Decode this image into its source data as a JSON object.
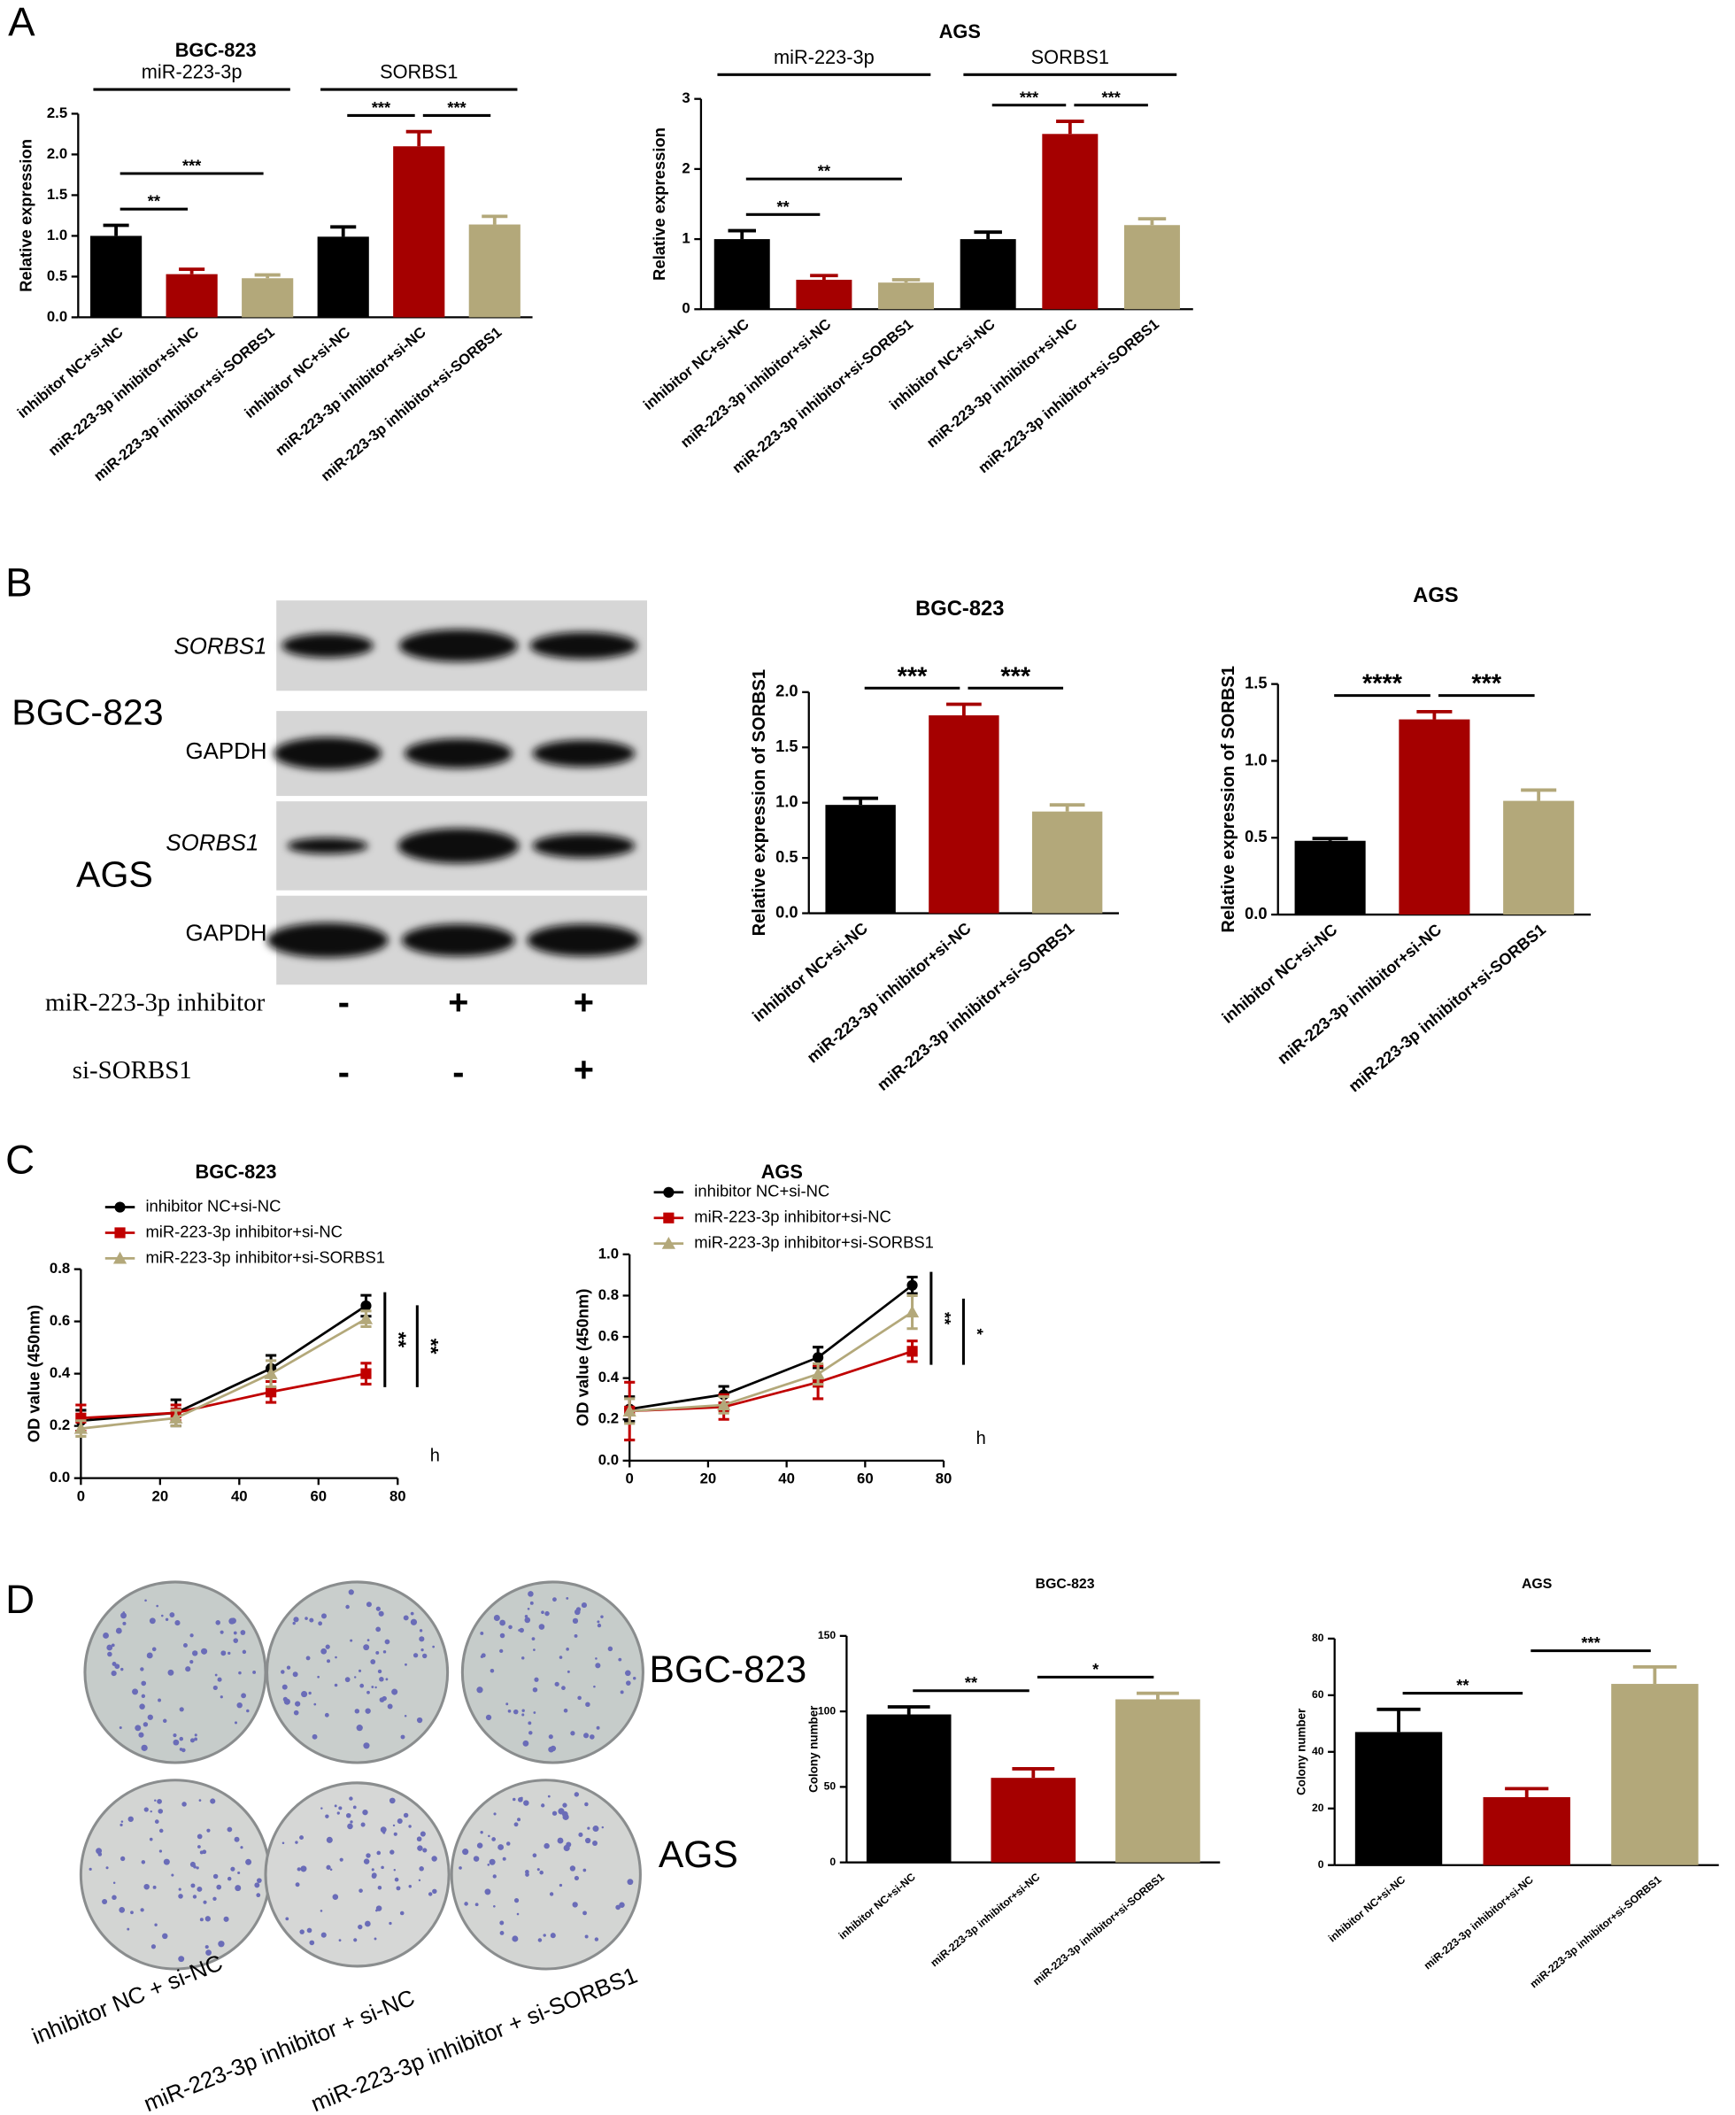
{
  "panel_labels": [
    "A",
    "B",
    "C",
    "D"
  ],
  "chart_data": [
    {
      "type": "bar",
      "title": "BGC-823",
      "y_label": "Relative expression",
      "categories": [
        "inhibitor NC+si-NC",
        "miR-223-3p inhibitor+si-NC",
        "miR-223-3p inhibitor+si-SORBS1",
        "inhibitor NC+si-NC",
        "miR-223-3p inhibitor+si-NC",
        "miR-223-3p inhibitor+si-SORBS1"
      ],
      "values": [
        1.0,
        0.53,
        0.48,
        0.99,
        2.1,
        1.14
      ],
      "errors": [
        0.13,
        0.06,
        0.04,
        0.12,
        0.18,
        0.1
      ],
      "colors": [
        "#000000",
        "#a50000",
        "#b3a87a",
        "#000000",
        "#a50000",
        "#b3a87a"
      ],
      "ylim": [
        0,
        2.5
      ],
      "yticks": [
        {
          "value": 0,
          "label": "0.0"
        },
        0.5,
        {
          "value": 1,
          "label": "1.0"
        },
        1.5,
        {
          "value": 2,
          "label": "2.0"
        },
        2.5
      ],
      "groups": [
        {
          "label": "miR-223-3p",
          "bars": [
            0,
            2
          ]
        },
        {
          "label": "SORBS1",
          "bars": [
            3,
            5
          ]
        }
      ],
      "significance": [
        {
          "label": "**",
          "bars": [
            0,
            1
          ]
        },
        {
          "label": "***",
          "bars": [
            0,
            2
          ]
        },
        {
          "label": "***",
          "bars": [
            3,
            4
          ]
        },
        {
          "label": "***",
          "bars": [
            4,
            5
          ]
        }
      ]
    },
    {
      "type": "bar",
      "title": "AGS",
      "y_label": "Relative expression",
      "categories": [
        "inhibitor NC+si-NC",
        "miR-223-3p inhibitor+si-NC",
        "miR-223-3p inhibitor+si-SORBS1",
        "inhibitor NC+si-NC",
        "miR-223-3p inhibitor+si-NC",
        "miR-223-3p inhibitor+si-SORBS1"
      ],
      "values": [
        1.0,
        0.42,
        0.38,
        1.0,
        2.5,
        1.2
      ],
      "errors": [
        0.12,
        0.06,
        0.04,
        0.1,
        0.18,
        0.09
      ],
      "colors": [
        "#000000",
        "#a50000",
        "#b3a87a",
        "#000000",
        "#a50000",
        "#b3a87a"
      ],
      "ylim": [
        0,
        3
      ],
      "yticks": [
        0,
        1,
        2,
        3
      ],
      "groups": [
        {
          "label": "miR-223-3p",
          "bars": [
            0,
            2
          ]
        },
        {
          "label": "SORBS1",
          "bars": [
            3,
            5
          ]
        }
      ],
      "significance": [
        {
          "label": "**",
          "bars": [
            0,
            1
          ]
        },
        {
          "label": "**",
          "bars": [
            0,
            2
          ]
        },
        {
          "label": "***",
          "bars": [
            3,
            4
          ]
        },
        {
          "label": "***",
          "bars": [
            4,
            5
          ]
        }
      ]
    },
    {
      "type": "bar",
      "title": "BGC-823",
      "y_label": "Relative expression of SORBS1",
      "categories": [
        "inhibitor NC+si-NC",
        "miR-223-3p inhibitor+si-NC",
        "miR-223-3p inhibitor+si-SORBS1"
      ],
      "values": [
        0.98,
        1.79,
        0.92
      ],
      "errors": [
        0.06,
        0.1,
        0.06
      ],
      "colors": [
        "#000000",
        "#a50000",
        "#b3a87a"
      ],
      "ylim": [
        0,
        2
      ],
      "yticks": [
        {
          "value": 0,
          "label": "0.0"
        },
        0.5,
        {
          "value": 1,
          "label": "1.0"
        },
        1.5,
        {
          "value": 2,
          "label": "2.0"
        }
      ],
      "significance": [
        {
          "label": "***",
          "bars": [
            0,
            1
          ]
        },
        {
          "label": "***",
          "bars": [
            1,
            2
          ]
        }
      ]
    },
    {
      "type": "bar",
      "title": "AGS",
      "y_label": "Relative expression of SORBS1",
      "categories": [
        "inhibitor NC+si-NC",
        "miR-223-3p inhibitor+si-NC",
        "miR-223-3p inhibitor+si-SORBS1"
      ],
      "values": [
        0.48,
        1.27,
        0.74
      ],
      "errors": [
        0.015,
        0.05,
        0.07
      ],
      "colors": [
        "#000000",
        "#a50000",
        "#b3a87a"
      ],
      "ylim": [
        0,
        1.5
      ],
      "yticks": [
        {
          "value": 0,
          "label": "0.0"
        },
        0.5,
        {
          "value": 1,
          "label": "1.0"
        },
        1.5
      ],
      "significance": [
        {
          "label": "****",
          "bars": [
            0,
            1
          ]
        },
        {
          "label": "***",
          "bars": [
            1,
            2
          ]
        }
      ]
    },
    {
      "type": "line",
      "title": "BGC-823",
      "y_label": "OD value (450nm)",
      "x_label": "h",
      "x": [
        0,
        24,
        48,
        72
      ],
      "xlim": [
        0,
        80
      ],
      "xticks": [
        0,
        20,
        40,
        60,
        80
      ],
      "ylim": [
        0,
        0.8
      ],
      "yticks": [
        {
          "value": 0,
          "label": "0.0"
        },
        0.2,
        0.4,
        0.6,
        0.8
      ],
      "series": [
        {
          "name": "inhibitor NC+si-NC",
          "color": "#000000",
          "marker": "circle",
          "values": [
            0.22,
            0.25,
            0.42,
            0.66
          ],
          "errors": [
            0.04,
            0.05,
            0.05,
            0.04
          ]
        },
        {
          "name": "miR-223-3p inhibitor+si-NC",
          "color": "#c00000",
          "marker": "square",
          "values": [
            0.23,
            0.25,
            0.33,
            0.4
          ],
          "errors": [
            0.05,
            0.03,
            0.04,
            0.04
          ]
        },
        {
          "name": "miR-223-3p inhibitor+si-SORBS1",
          "color": "#b3a87a",
          "marker": "triangle",
          "values": [
            0.19,
            0.23,
            0.4,
            0.61
          ],
          "errors": [
            0.03,
            0.03,
            0.05,
            0.03
          ]
        }
      ],
      "significance": [
        {
          "label": "**",
          "series": [
            0,
            1
          ]
        },
        {
          "label": "**",
          "series": [
            2,
            1
          ]
        }
      ]
    },
    {
      "type": "line",
      "title": "AGS",
      "y_label": "OD value (450nm)",
      "x_label": "h",
      "x": [
        0,
        24,
        48,
        72
      ],
      "xlim": [
        0,
        80
      ],
      "xticks": [
        0,
        20,
        40,
        60,
        80
      ],
      "ylim": [
        0,
        1
      ],
      "yticks": [
        {
          "value": 0,
          "label": "0.0"
        },
        0.2,
        0.4,
        0.6,
        0.8,
        {
          "value": 1,
          "label": "1.0"
        }
      ],
      "series": [
        {
          "name": "inhibitor NC+si-NC",
          "color": "#000000",
          "marker": "circle",
          "values": [
            0.25,
            0.32,
            0.5,
            0.85
          ],
          "errors": [
            0.06,
            0.04,
            0.05,
            0.04
          ]
        },
        {
          "name": "miR-223-3p inhibitor+si-NC",
          "color": "#c00000",
          "marker": "square",
          "values": [
            0.24,
            0.26,
            0.38,
            0.53
          ],
          "errors": [
            0.14,
            0.06,
            0.08,
            0.05
          ]
        },
        {
          "name": "miR-223-3p inhibitor+si-SORBS1",
          "color": "#b3a87a",
          "marker": "triangle",
          "values": [
            0.24,
            0.27,
            0.42,
            0.72
          ],
          "errors": [
            0.06,
            0.04,
            0.05,
            0.08
          ]
        }
      ],
      "significance": [
        {
          "label": "**",
          "series": [
            0,
            1
          ]
        },
        {
          "label": "*",
          "series": [
            2,
            1
          ]
        }
      ]
    },
    {
      "type": "bar",
      "title": "BGC-823",
      "y_label": "Colony number",
      "categories": [
        "inhibitor NC+si-NC",
        "miR-223-3p inhibitor+si-NC",
        "miR-223-3p inhibitor+si-SORBS1"
      ],
      "values": [
        98,
        56,
        108
      ],
      "errors": [
        5,
        6,
        4
      ],
      "colors": [
        "#000000",
        "#a50000",
        "#b3a87a"
      ],
      "ylim": [
        0,
        150
      ],
      "yticks": [
        0,
        50,
        100,
        150
      ],
      "significance": [
        {
          "label": "**",
          "bars": [
            0,
            1
          ]
        },
        {
          "label": "*",
          "bars": [
            1,
            2
          ]
        }
      ]
    },
    {
      "type": "bar",
      "title": "AGS",
      "y_label": "Colony number",
      "categories": [
        "inhibitor NC+si-NC",
        "miR-223-3p inhibitor+si-NC",
        "miR-223-3p inhibitor+si-SORBS1"
      ],
      "values": [
        47,
        24,
        64
      ],
      "errors": [
        8,
        3,
        6
      ],
      "colors": [
        "#000000",
        "#a50000",
        "#b3a87a"
      ],
      "ylim": [
        0,
        80
      ],
      "yticks": [
        0,
        20,
        40,
        60,
        80
      ],
      "significance": [
        {
          "label": "**",
          "bars": [
            0,
            1
          ]
        },
        {
          "label": "***",
          "bars": [
            1,
            2
          ]
        }
      ]
    }
  ],
  "blot": {
    "cell_lines": [
      "BGC-823",
      "AGS"
    ],
    "rows": [
      "SORBS1",
      "GAPDH",
      "SORBS1",
      "GAPDH"
    ],
    "conditions": [
      {
        "name": "miR-223-3p inhibitor",
        "signs": [
          "-",
          "+",
          "+"
        ]
      },
      {
        "name": "si-SORBS1",
        "signs": [
          "-",
          "-",
          "+"
        ]
      }
    ]
  },
  "colony": {
    "cell_lines": [
      "BGC-823",
      "AGS"
    ],
    "groups": [
      "inhibitor NC + si-NC",
      "miR-223-3p inhibitor + si-NC",
      "miR-223-3p inhibitor + si-SORBS1"
    ]
  }
}
